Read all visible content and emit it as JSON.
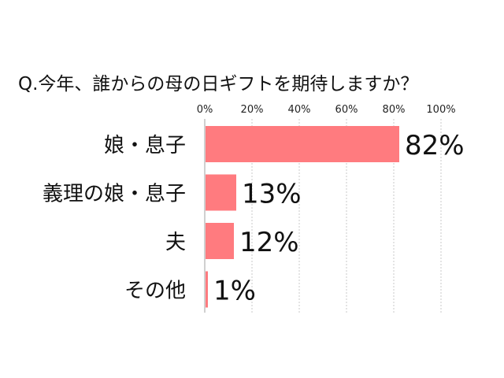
{
  "chart_data": {
    "type": "bar",
    "orientation": "horizontal",
    "title": "Q.今年、誰からの母の日ギフトを期待しますか？",
    "categories": [
      "娘・息子",
      "義理の娘・息子",
      "夫",
      "その他"
    ],
    "values": [
      82,
      13,
      12,
      1
    ],
    "value_labels": [
      "82%",
      "13%",
      "12%",
      "1%"
    ],
    "x_ticks": [
      "0%",
      "20%",
      "40%",
      "60%",
      "80%",
      "100%"
    ],
    "xlim": [
      0,
      100
    ],
    "bar_color": "#ff7b7f",
    "grid": true,
    "legend": "none"
  }
}
